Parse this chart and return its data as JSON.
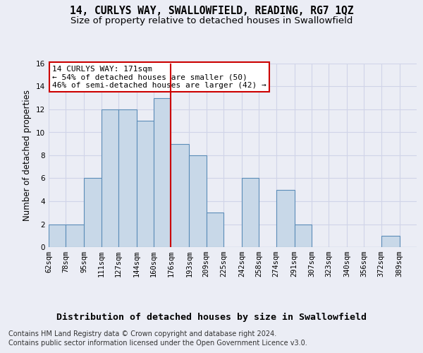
{
  "title": "14, CURLYS WAY, SWALLOWFIELD, READING, RG7 1QZ",
  "subtitle": "Size of property relative to detached houses in Swallowfield",
  "xlabel": "Distribution of detached houses by size in Swallowfield",
  "ylabel": "Number of detached properties",
  "bin_labels": [
    "62sqm",
    "78sqm",
    "95sqm",
    "111sqm",
    "127sqm",
    "144sqm",
    "160sqm",
    "176sqm",
    "193sqm",
    "209sqm",
    "225sqm",
    "242sqm",
    "258sqm",
    "274sqm",
    "291sqm",
    "307sqm",
    "323sqm",
    "340sqm",
    "356sqm",
    "372sqm",
    "389sqm"
  ],
  "bar_heights": [
    2,
    2,
    6,
    12,
    12,
    11,
    13,
    9,
    8,
    3,
    0,
    6,
    0,
    5,
    2,
    0,
    0,
    0,
    0,
    1,
    0
  ],
  "bar_color": "#c8d8e8",
  "bar_edge_color": "#5b8db8",
  "bin_edges": [
    62,
    78,
    95,
    111,
    127,
    144,
    160,
    176,
    193,
    209,
    225,
    242,
    258,
    274,
    291,
    307,
    323,
    340,
    356,
    372,
    389,
    405
  ],
  "vline_x": 176,
  "vline_color": "#cc0000",
  "annotation_title": "14 CURLYS WAY: 171sqm",
  "annotation_line1": "← 54% of detached houses are smaller (50)",
  "annotation_line2": "46% of semi-detached houses are larger (42) →",
  "annotation_box_color": "#ffffff",
  "annotation_box_edge": "#cc0000",
  "ylim": [
    0,
    16
  ],
  "yticks": [
    0,
    2,
    4,
    6,
    8,
    10,
    12,
    14,
    16
  ],
  "grid_color": "#d0d4e8",
  "bg_color": "#ebedf5",
  "plot_bg_color": "#ebedf5",
  "footer1": "Contains HM Land Registry data © Crown copyright and database right 2024.",
  "footer2": "Contains public sector information licensed under the Open Government Licence v3.0.",
  "title_fontsize": 10.5,
  "subtitle_fontsize": 9.5,
  "xlabel_fontsize": 9.5,
  "ylabel_fontsize": 8.5,
  "tick_fontsize": 7.5,
  "annotation_fontsize": 8,
  "footer_fontsize": 7
}
